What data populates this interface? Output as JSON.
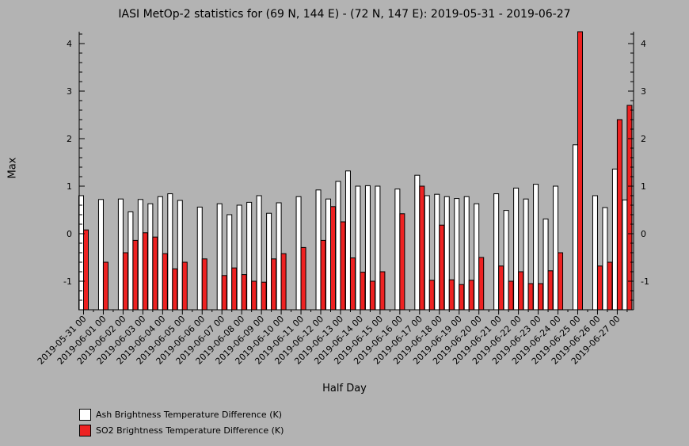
{
  "chart_data": {
    "type": "bar",
    "title": "IASI MetOp-2 statistics for (69 N, 144 E) - (72 N, 147 E): 2019-05-31 - 2019-06-27",
    "xlabel": "Half Day",
    "ylabel": "Max",
    "ylim": [
      -1.6,
      4.25
    ],
    "yticks": [
      -1,
      0,
      1,
      2,
      3,
      4
    ],
    "ytick_labels": [
      "-1",
      "0",
      "1",
      "2",
      "3",
      "4"
    ],
    "legend_position": "bottom-left",
    "tick_labels": [
      "2019-05-31 00",
      "2019-06-01 00",
      "2019-06-02 00",
      "2019-06-03 00",
      "2019-06-04 00",
      "2019-06-05 00",
      "2019-06-06 00",
      "2019-06-07 00",
      "2019-06-08 00",
      "2019-06-09 00",
      "2019-06-10 00",
      "2019-06-11 00",
      "2019-06-12 00",
      "2019-06-13 00",
      "2019-06-14 00",
      "2019-06-15 00",
      "2019-06-16 00",
      "2019-06-17 00",
      "2019-06-18 00",
      "2019-06-19 00",
      "2019-06-20 00",
      "2019-06-21 00",
      "2019-06-22 00",
      "2019-06-23 00",
      "2019-06-24 00",
      "2019-06-25 00",
      "2019-06-26 00",
      "2019-06-27 00"
    ],
    "x_halfdays": [
      "2019-05-31 00",
      "2019-05-31 12",
      "2019-06-01 00",
      "2019-06-01 12",
      "2019-06-02 00",
      "2019-06-02 12",
      "2019-06-03 00",
      "2019-06-03 12",
      "2019-06-04 00",
      "2019-06-04 12",
      "2019-06-05 00",
      "2019-06-05 12",
      "2019-06-06 00",
      "2019-06-06 12",
      "2019-06-07 00",
      "2019-06-07 12",
      "2019-06-08 00",
      "2019-06-08 12",
      "2019-06-09 00",
      "2019-06-09 12",
      "2019-06-10 00",
      "2019-06-10 12",
      "2019-06-11 00",
      "2019-06-11 12",
      "2019-06-12 00",
      "2019-06-12 12",
      "2019-06-13 00",
      "2019-06-13 12",
      "2019-06-14 00",
      "2019-06-14 12",
      "2019-06-15 00",
      "2019-06-15 12",
      "2019-06-16 00",
      "2019-06-16 12",
      "2019-06-17 00",
      "2019-06-17 12",
      "2019-06-18 00",
      "2019-06-18 12",
      "2019-06-19 00",
      "2019-06-19 12",
      "2019-06-20 00",
      "2019-06-20 12",
      "2019-06-21 00",
      "2019-06-21 12",
      "2019-06-22 00",
      "2019-06-22 12",
      "2019-06-23 00",
      "2019-06-23 12",
      "2019-06-24 00",
      "2019-06-24 12",
      "2019-06-25 00",
      "2019-06-25 12",
      "2019-06-26 00",
      "2019-06-26 12",
      "2019-06-27 00",
      "2019-06-27 12"
    ],
    "series": [
      {
        "name": "Ash Brightness Temperature Difference (K)",
        "color": "#ffffff",
        "values": [
          0.8,
          null,
          0.72,
          null,
          0.73,
          0.46,
          0.72,
          0.63,
          0.78,
          0.84,
          0.7,
          null,
          0.56,
          null,
          0.63,
          0.4,
          0.6,
          0.66,
          0.8,
          0.43,
          0.65,
          null,
          0.78,
          null,
          0.92,
          0.73,
          1.1,
          1.32,
          1.0,
          1.01,
          1.0,
          null,
          0.94,
          null,
          1.23,
          0.8,
          0.83,
          0.78,
          0.74,
          0.78,
          0.63,
          null,
          0.84,
          0.49,
          0.96,
          0.73,
          1.04,
          0.31,
          1.0,
          null,
          1.87,
          null,
          0.8,
          0.55,
          1.36,
          0.71
        ]
      },
      {
        "name": "SO2 Brightness Temperature Difference (K)",
        "color": "#ee2222",
        "values": [
          0.08,
          null,
          -0.6,
          null,
          -0.4,
          -0.14,
          0.02,
          -0.07,
          -0.42,
          -0.74,
          -0.6,
          null,
          -0.53,
          null,
          -0.88,
          -0.72,
          -0.86,
          -1.0,
          -1.02,
          -0.53,
          -0.42,
          null,
          -0.29,
          null,
          -0.14,
          0.57,
          0.25,
          -0.51,
          -0.81,
          -1.0,
          -0.8,
          null,
          0.42,
          null,
          1.0,
          -0.98,
          0.18,
          -0.97,
          -1.07,
          -0.98,
          -0.5,
          null,
          -0.68,
          -1.0,
          -0.8,
          -1.05,
          -1.05,
          -0.78,
          -0.4,
          null,
          4.25,
          null,
          -0.68,
          -0.6,
          2.4,
          2.7
        ]
      }
    ]
  }
}
